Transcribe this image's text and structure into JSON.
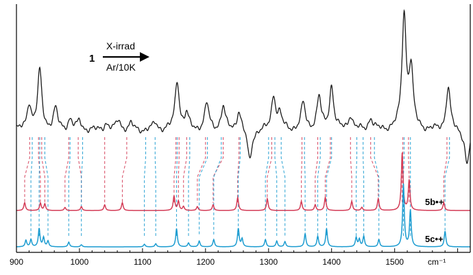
{
  "chart_data": {
    "type": "line",
    "xlabel": "cm⁻¹",
    "xlim": [
      900,
      1620
    ],
    "x_ticks": [
      "900",
      "1000",
      "1100",
      "1200",
      "1300",
      "1400",
      "1500"
    ],
    "annotation": {
      "compound": "1",
      "condition_top": "X-irrad",
      "condition_bottom": "Ar/10K"
    },
    "series": [
      {
        "name": "",
        "color": "#1a1a1a",
        "kind": "experimental",
        "baseline_value": 0,
        "peaks": [
          {
            "x": 920,
            "h": 0.45
          },
          {
            "x": 937,
            "h": 1.0
          },
          {
            "x": 962,
            "h": 0.35
          },
          {
            "x": 985,
            "h": 0.18
          },
          {
            "x": 1000,
            "h": 0.15
          },
          {
            "x": 1042,
            "h": 0.12
          },
          {
            "x": 1062,
            "h": 0.18
          },
          {
            "x": 1082,
            "h": 0.1
          },
          {
            "x": 1120,
            "h": 0.12
          },
          {
            "x": 1155,
            "h": 0.85
          },
          {
            "x": 1170,
            "h": 0.25
          },
          {
            "x": 1202,
            "h": 0.45
          },
          {
            "x": 1228,
            "h": 0.4
          },
          {
            "x": 1253,
            "h": 0.35
          },
          {
            "x": 1270,
            "h": -0.55
          },
          {
            "x": 1308,
            "h": 0.6
          },
          {
            "x": 1318,
            "h": 0.25
          },
          {
            "x": 1355,
            "h": 0.45
          },
          {
            "x": 1380,
            "h": 0.55
          },
          {
            "x": 1400,
            "h": 0.75
          },
          {
            "x": 1430,
            "h": 0.25
          },
          {
            "x": 1462,
            "h": 0.2
          },
          {
            "x": 1515,
            "h": 1.95
          },
          {
            "x": 1526,
            "h": 1.0
          },
          {
            "x": 1585,
            "h": 0.75
          },
          {
            "x": 1615,
            "h": -0.6
          }
        ]
      },
      {
        "name": "5b•+",
        "color": "#d33a55",
        "kind": "calculated",
        "peaks": [
          {
            "x": 913,
            "h": 0.3
          },
          {
            "x": 938,
            "h": 0.28
          },
          {
            "x": 945,
            "h": 0.25
          },
          {
            "x": 977,
            "h": 0.12
          },
          {
            "x": 1003,
            "h": 0.15
          },
          {
            "x": 1040,
            "h": 0.22
          },
          {
            "x": 1068,
            "h": 0.3
          },
          {
            "x": 1150,
            "h": 0.55
          },
          {
            "x": 1157,
            "h": 0.35
          },
          {
            "x": 1165,
            "h": 0.15
          },
          {
            "x": 1187,
            "h": 0.15
          },
          {
            "x": 1212,
            "h": 0.22
          },
          {
            "x": 1251,
            "h": 0.5
          },
          {
            "x": 1298,
            "h": 0.45
          },
          {
            "x": 1352,
            "h": 0.35
          },
          {
            "x": 1374,
            "h": 0.22
          },
          {
            "x": 1390,
            "h": 0.5
          },
          {
            "x": 1432,
            "h": 0.35
          },
          {
            "x": 1448,
            "h": 0.12
          },
          {
            "x": 1474,
            "h": 0.45
          },
          {
            "x": 1512,
            "h": 2.2
          },
          {
            "x": 1523,
            "h": 1.15
          },
          {
            "x": 1578,
            "h": 0.3
          }
        ]
      },
      {
        "name": "5c•+",
        "color": "#1a9bd0",
        "kind": "calculated",
        "peaks": [
          {
            "x": 915,
            "h": 0.25
          },
          {
            "x": 923,
            "h": 0.28
          },
          {
            "x": 936,
            "h": 0.7
          },
          {
            "x": 943,
            "h": 0.35
          },
          {
            "x": 950,
            "h": 0.22
          },
          {
            "x": 983,
            "h": 0.18
          },
          {
            "x": 1003,
            "h": 0.08
          },
          {
            "x": 1103,
            "h": 0.1
          },
          {
            "x": 1121,
            "h": 0.12
          },
          {
            "x": 1154,
            "h": 0.7
          },
          {
            "x": 1173,
            "h": 0.15
          },
          {
            "x": 1190,
            "h": 0.22
          },
          {
            "x": 1213,
            "h": 0.28
          },
          {
            "x": 1252,
            "h": 0.7
          },
          {
            "x": 1258,
            "h": 0.3
          },
          {
            "x": 1295,
            "h": 0.28
          },
          {
            "x": 1313,
            "h": 0.22
          },
          {
            "x": 1326,
            "h": 0.2
          },
          {
            "x": 1358,
            "h": 0.5
          },
          {
            "x": 1378,
            "h": 0.4
          },
          {
            "x": 1392,
            "h": 0.7
          },
          {
            "x": 1439,
            "h": 0.35
          },
          {
            "x": 1444,
            "h": 0.28
          },
          {
            "x": 1451,
            "h": 0.4
          },
          {
            "x": 1475,
            "h": 0.28
          },
          {
            "x": 1514,
            "h": 2.4
          },
          {
            "x": 1525,
            "h": 1.4
          },
          {
            "x": 1580,
            "h": 0.6
          }
        ]
      }
    ],
    "assignment_lines": [
      {
        "x_top": 921,
        "x_bottom": 913,
        "color": "#d33a55"
      },
      {
        "x_top": 935,
        "x_bottom": 938,
        "color": "#d33a55"
      },
      {
        "x_top": 940,
        "x_bottom": 945,
        "color": "#d33a55"
      },
      {
        "x_top": 983,
        "x_bottom": 977,
        "color": "#d33a55"
      },
      {
        "x_top": 998,
        "x_bottom": 1003,
        "color": "#d33a55"
      },
      {
        "x_top": 1040,
        "x_bottom": 1040,
        "color": "#d33a55"
      },
      {
        "x_top": 1075,
        "x_bottom": 1068,
        "color": "#d33a55"
      },
      {
        "x_top": 1153,
        "x_bottom": 1150,
        "color": "#d33a55"
      },
      {
        "x_top": 1158,
        "x_bottom": 1157,
        "color": "#d33a55"
      },
      {
        "x_top": 1170,
        "x_bottom": 1165,
        "color": "#d33a55"
      },
      {
        "x_top": 1200,
        "x_bottom": 1187,
        "color": "#d33a55"
      },
      {
        "x_top": 1228,
        "x_bottom": 1212,
        "color": "#d33a55"
      },
      {
        "x_top": 1253,
        "x_bottom": 1251,
        "color": "#d33a55"
      },
      {
        "x_top": 1305,
        "x_bottom": 1298,
        "color": "#d33a55"
      },
      {
        "x_top": 1353,
        "x_bottom": 1352,
        "color": "#d33a55"
      },
      {
        "x_top": 1378,
        "x_bottom": 1374,
        "color": "#d33a55"
      },
      {
        "x_top": 1398,
        "x_bottom": 1390,
        "color": "#d33a55"
      },
      {
        "x_top": 1430,
        "x_bottom": 1432,
        "color": "#d33a55"
      },
      {
        "x_top": 1462,
        "x_bottom": 1474,
        "color": "#d33a55"
      },
      {
        "x_top": 1513,
        "x_bottom": 1512,
        "color": "#d33a55"
      },
      {
        "x_top": 1522,
        "x_bottom": 1523,
        "color": "#d33a55"
      },
      {
        "x_top": 1583,
        "x_bottom": 1578,
        "color": "#d33a55"
      },
      {
        "x_top": 925,
        "x_bottom": 923,
        "color": "#1a9bd0"
      },
      {
        "x_top": 937,
        "x_bottom": 936,
        "color": "#1a9bd0"
      },
      {
        "x_top": 945,
        "x_bottom": 950,
        "color": "#1a9bd0"
      },
      {
        "x_top": 985,
        "x_bottom": 983,
        "color": "#1a9bd0"
      },
      {
        "x_top": 1005,
        "x_bottom": 1003,
        "color": "#1a9bd0"
      },
      {
        "x_top": 1105,
        "x_bottom": 1103,
        "color": "#1a9bd0"
      },
      {
        "x_top": 1120,
        "x_bottom": 1121,
        "color": "#1a9bd0"
      },
      {
        "x_top": 1155,
        "x_bottom": 1154,
        "color": "#1a9bd0"
      },
      {
        "x_top": 1175,
        "x_bottom": 1173,
        "color": "#1a9bd0"
      },
      {
        "x_top": 1203,
        "x_bottom": 1190,
        "color": "#1a9bd0"
      },
      {
        "x_top": 1225,
        "x_bottom": 1213,
        "color": "#1a9bd0"
      },
      {
        "x_top": 1255,
        "x_bottom": 1252,
        "color": "#1a9bd0"
      },
      {
        "x_top": 1300,
        "x_bottom": 1295,
        "color": "#1a9bd0"
      },
      {
        "x_top": 1310,
        "x_bottom": 1313,
        "color": "#1a9bd0"
      },
      {
        "x_top": 1320,
        "x_bottom": 1326,
        "color": "#1a9bd0"
      },
      {
        "x_top": 1357,
        "x_bottom": 1358,
        "color": "#1a9bd0"
      },
      {
        "x_top": 1382,
        "x_bottom": 1378,
        "color": "#1a9bd0"
      },
      {
        "x_top": 1400,
        "x_bottom": 1392,
        "color": "#1a9bd0"
      },
      {
        "x_top": 1440,
        "x_bottom": 1439,
        "color": "#1a9bd0"
      },
      {
        "x_top": 1450,
        "x_bottom": 1451,
        "color": "#1a9bd0"
      },
      {
        "x_top": 1468,
        "x_bottom": 1475,
        "color": "#1a9bd0"
      },
      {
        "x_top": 1515,
        "x_bottom": 1514,
        "color": "#1a9bd0"
      },
      {
        "x_top": 1525,
        "x_bottom": 1525,
        "color": "#1a9bd0"
      },
      {
        "x_top": 1587,
        "x_bottom": 1580,
        "color": "#1a9bd0"
      }
    ]
  }
}
